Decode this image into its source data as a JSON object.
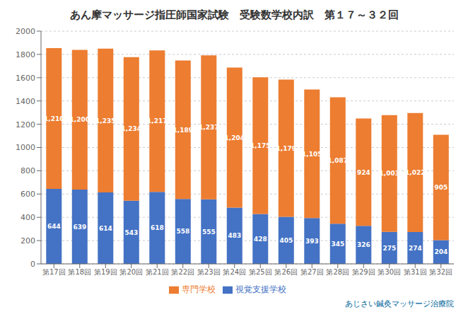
{
  "chart_data": {
    "type": "bar",
    "title": "あん摩マッサージ指圧師国家試験　受験数学校内訳　第１７～３２回",
    "categories": [
      "第17回",
      "第18回",
      "第19回",
      "第20回",
      "第21回",
      "第22回",
      "第23回",
      "第24回",
      "第25回",
      "第26回",
      "第27回",
      "第28回",
      "第29回",
      "第30回",
      "第31回",
      "第32回"
    ],
    "series": [
      {
        "name": "視覚支援学校",
        "color": "#4472C4",
        "values": [
          644,
          639,
          614,
          543,
          618,
          558,
          555,
          483,
          428,
          405,
          393,
          345,
          326,
          275,
          274,
          204
        ],
        "value_labels": [
          "644",
          "639",
          "614",
          "543",
          "618",
          "558",
          "555",
          "483",
          "428",
          "405",
          "393",
          "345",
          "326",
          "275",
          "274",
          "204"
        ]
      },
      {
        "name": "専門学校",
        "color": "#ED7D31",
        "values": [
          1210,
          1200,
          1235,
          1234,
          1217,
          1189,
          1237,
          1204,
          1175,
          1179,
          1105,
          1087,
          924,
          1003,
          1022,
          905
        ],
        "value_labels": [
          "1,210",
          "1,200",
          "1,235",
          "1,234",
          "1,217",
          "1,189",
          "1,237",
          "1,204",
          "1,175",
          "1,179",
          "1,105",
          "1,087",
          "924",
          "1,003",
          "1,022",
          "905"
        ]
      }
    ],
    "ylim": [
      0,
      2000
    ],
    "yticks": [
      0,
      200,
      400,
      600,
      800,
      1000,
      1200,
      1400,
      1600,
      1800,
      2000
    ],
    "stacked": true,
    "data_labels": true,
    "grid": true,
    "legend": "bottom",
    "annotations": [
      "あじさい鍼灸マッサージ治療院"
    ]
  }
}
